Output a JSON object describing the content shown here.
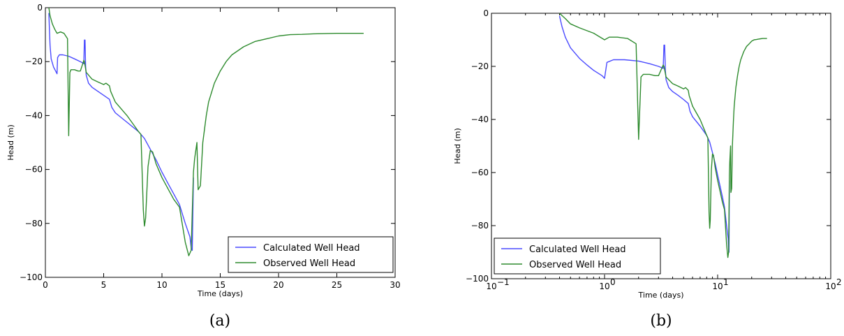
{
  "chart_data": [
    {
      "type": "line",
      "caption": "(a)",
      "xlabel": "Time (days)",
      "ylabel": "Head (m)",
      "xscale": "linear",
      "xlim": [
        0,
        30
      ],
      "ylim": [
        -100,
        0
      ],
      "xticks": [
        0,
        5,
        10,
        15,
        20,
        25,
        30
      ],
      "xtick_labels": [
        "0",
        "5",
        "10",
        "15",
        "20",
        "25",
        "30"
      ],
      "yticks": [
        0,
        -20,
        -40,
        -60,
        -80,
        -100
      ],
      "ytick_labels": [
        "0",
        "−20",
        "−40",
        "−60",
        "−80",
        "−100"
      ],
      "grid": false,
      "legend_position": "bottom-right",
      "series": [
        {
          "name": "Calculated Well Head",
          "color": "#4a4aff",
          "x": [
            0.3,
            0.35,
            0.4,
            0.5,
            0.7,
            1.0,
            1.05,
            1.2,
            1.5,
            2.0,
            2.5,
            3.0,
            3.2,
            3.3,
            3.35,
            3.4,
            3.45,
            3.5,
            3.7,
            4.0,
            4.5,
            5.0,
            5.5,
            5.7,
            6.0,
            7.0,
            8.0,
            8.5,
            9.0,
            9.5,
            10.0,
            10.5,
            11.0,
            11.5,
            12.0,
            12.4,
            12.5,
            12.6,
            12.7
          ],
          "y": [
            -2,
            -8,
            -14,
            -19,
            -22,
            -24.5,
            -18.5,
            -17.5,
            -17.5,
            -18,
            -19,
            -20,
            -20.5,
            -20.8,
            -12,
            -12,
            -21.5,
            -25,
            -28,
            -29.5,
            -31,
            -32.5,
            -34,
            -37,
            -39,
            -42.5,
            -46,
            -48.5,
            -52.5,
            -56.5,
            -61,
            -65,
            -69,
            -73,
            -80,
            -85,
            -89,
            -90,
            -63
          ]
        },
        {
          "name": "Observed Well Head",
          "color": "#2e8b2e",
          "x": [
            0.3,
            0.4,
            0.6,
            0.8,
            1.0,
            1.3,
            1.6,
            1.9,
            2.0,
            2.1,
            2.2,
            2.5,
            2.8,
            3.0,
            3.3,
            3.35,
            3.5,
            4.0,
            4.5,
            5.0,
            5.2,
            5.5,
            5.6,
            6.0,
            7.0,
            8.0,
            8.2,
            8.4,
            8.5,
            8.6,
            8.8,
            9.0,
            9.2,
            9.5,
            10.0,
            10.5,
            11.0,
            11.5,
            12.0,
            12.3,
            12.5,
            12.7,
            12.8,
            13.0,
            13.1,
            13.3,
            13.5,
            13.8,
            14.0,
            14.5,
            15.0,
            15.5,
            16.0,
            17.0,
            18.0,
            19.0,
            20.0,
            21.0,
            22.0,
            23.0,
            24.0,
            25.0,
            26.0,
            27.3
          ],
          "y": [
            0,
            -3,
            -6,
            -8,
            -9.5,
            -9,
            -9.5,
            -11.5,
            -47.5,
            -24,
            -23,
            -23,
            -23.5,
            -23.5,
            -19.5,
            -20,
            -24,
            -26.5,
            -27.5,
            -28.5,
            -28,
            -29,
            -31,
            -35,
            -40,
            -46,
            -47,
            -75,
            -81,
            -78,
            -59,
            -53,
            -53.5,
            -58,
            -63,
            -67,
            -71,
            -74,
            -87,
            -92,
            -90,
            -61,
            -56,
            -50,
            -67.5,
            -66,
            -50,
            -40,
            -35,
            -28,
            -23.5,
            -20,
            -17.5,
            -14.5,
            -12.5,
            -11.5,
            -10.5,
            -10,
            -9.9,
            -9.7,
            -9.6,
            -9.5,
            -9.5,
            -9.5
          ]
        }
      ]
    },
    {
      "type": "line",
      "caption": "(b)",
      "xlabel": "Time (days)",
      "ylabel": "Head (m)",
      "xscale": "log",
      "xlim": [
        0.1,
        100
      ],
      "ylim": [
        -100,
        0
      ],
      "xticks": [
        0.1,
        1,
        10,
        100
      ],
      "xtick_labels": [
        "10",
        "10",
        "10",
        "10"
      ],
      "xtick_exponents": [
        "−1",
        "0",
        "1",
        "2"
      ],
      "yticks": [
        0,
        -20,
        -40,
        -60,
        -80,
        -100
      ],
      "ytick_labels": [
        "0",
        "−20",
        "−40",
        "−60",
        "−80",
        "−100"
      ],
      "grid": false,
      "legend_position": "bottom-left",
      "series": [
        {
          "name": "Calculated Well Head",
          "color": "#4a4aff",
          "x": [
            0.4,
            0.42,
            0.45,
            0.5,
            0.6,
            0.7,
            0.8,
            0.95,
            1.0,
            1.05,
            1.2,
            1.5,
            2.0,
            2.5,
            3.0,
            3.2,
            3.3,
            3.35,
            3.4,
            3.45,
            3.5,
            3.7,
            4.0,
            4.5,
            5.0,
            5.5,
            5.7,
            6.0,
            7.0,
            8.0,
            8.5,
            9.0,
            9.5,
            10.0,
            10.5,
            11.0,
            11.5,
            12.0,
            12.4,
            12.5,
            12.6,
            12.7
          ],
          "y": [
            -1,
            -5,
            -9,
            -13,
            -17,
            -19.5,
            -21.5,
            -23.5,
            -24.5,
            -18.5,
            -17.5,
            -17.5,
            -18,
            -19,
            -20,
            -20.5,
            -20.8,
            -12,
            -12,
            -21.5,
            -25,
            -28,
            -29.5,
            -31,
            -32.5,
            -34,
            -37,
            -39,
            -42.5,
            -46,
            -48.5,
            -52.5,
            -56.5,
            -61,
            -65,
            -69,
            -73,
            -80,
            -85,
            -89,
            -90,
            -63
          ]
        },
        {
          "name": "Observed Well Head",
          "color": "#2e8b2e",
          "x": [
            0.4,
            0.45,
            0.5,
            0.6,
            0.8,
            1.0,
            1.1,
            1.3,
            1.6,
            1.9,
            2.0,
            2.1,
            2.2,
            2.5,
            2.8,
            3.0,
            3.3,
            3.35,
            3.5,
            4.0,
            4.5,
            5.0,
            5.2,
            5.5,
            5.6,
            6.0,
            7.0,
            8.0,
            8.2,
            8.4,
            8.5,
            8.6,
            8.8,
            9.0,
            9.2,
            9.5,
            10.0,
            10.5,
            11.0,
            11.5,
            12.0,
            12.3,
            12.5,
            12.7,
            12.8,
            13.0,
            13.1,
            13.3,
            13.5,
            13.8,
            14.0,
            14.5,
            15.0,
            15.5,
            16.0,
            17.0,
            18.0,
            19.0,
            20.0,
            21.0,
            22.0,
            23.0,
            24.0,
            25.0,
            26.0,
            27.3
          ],
          "y": [
            0,
            -2,
            -4,
            -5.5,
            -7.5,
            -10,
            -9,
            -9,
            -9.5,
            -11.5,
            -47.5,
            -24,
            -23,
            -23,
            -23.5,
            -23.5,
            -19.5,
            -20,
            -24,
            -26.5,
            -27.5,
            -28.5,
            -28,
            -29,
            -31,
            -35,
            -40,
            -46,
            -47,
            -75,
            -81,
            -78,
            -59,
            -53,
            -53.5,
            -58,
            -63,
            -67,
            -71,
            -74,
            -87,
            -92,
            -90,
            -61,
            -56,
            -50,
            -67.5,
            -66,
            -50,
            -40,
            -35,
            -28,
            -23.5,
            -20,
            -17.5,
            -14.5,
            -12.5,
            -11.5,
            -10.5,
            -10,
            -9.9,
            -9.7,
            -9.6,
            -9.5,
            -9.5,
            -9.5
          ]
        }
      ]
    }
  ]
}
